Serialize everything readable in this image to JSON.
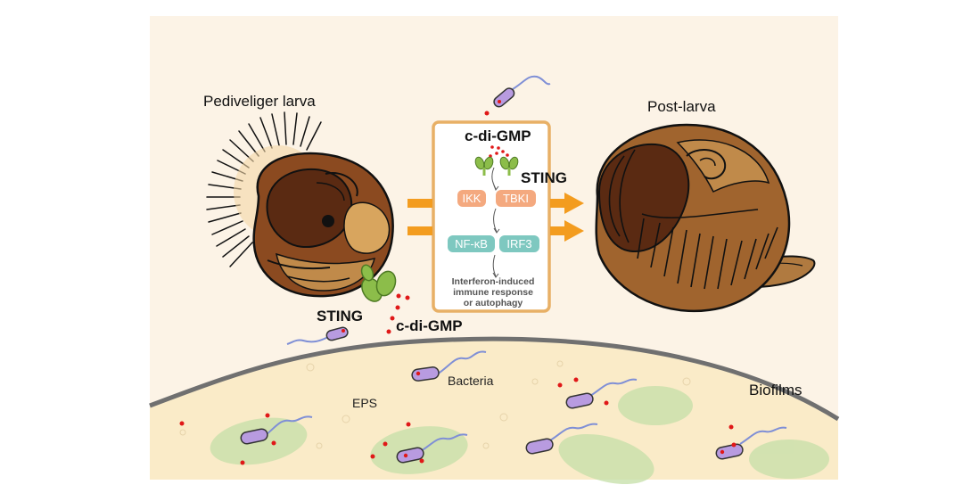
{
  "labels": {
    "pediveliger_larva": "Pediveliger larva",
    "post_larva": "Post-larva",
    "sting_left": "STING",
    "cdigmp_left": "c-di-GMP",
    "eps": "EPS",
    "bacteria": "Bacteria",
    "biofilms": "Biofilms"
  },
  "pathway": {
    "cdigmp": "c-di-GMP",
    "sting": "STING",
    "ikk": "IKK",
    "tbki": "TBKI",
    "nfkb": "NF-κB",
    "irf3": "IRF3",
    "outcome_line1": "Interferon-induced",
    "outcome_line2": "immune response",
    "outcome_line3": "or autophagy"
  },
  "colors": {
    "background_panel": "#fcf3e6",
    "biofilm_fill": "#faebc8",
    "biofilm_border": "#707070",
    "arrow_orange": "#f39c1f",
    "box_border": "#e8b066",
    "kinase_box": "#f4a97f",
    "tf_box": "#7ec8c0",
    "sting_green": "#8cbd4a",
    "bacteria_purple": "#b89be0",
    "flagella_blue": "#7f8fd6",
    "cdigmp_red": "#e01818",
    "shell_dark": "#5a2a12",
    "shell_mid": "#8b4a20",
    "shell_light": "#c08a4a"
  }
}
